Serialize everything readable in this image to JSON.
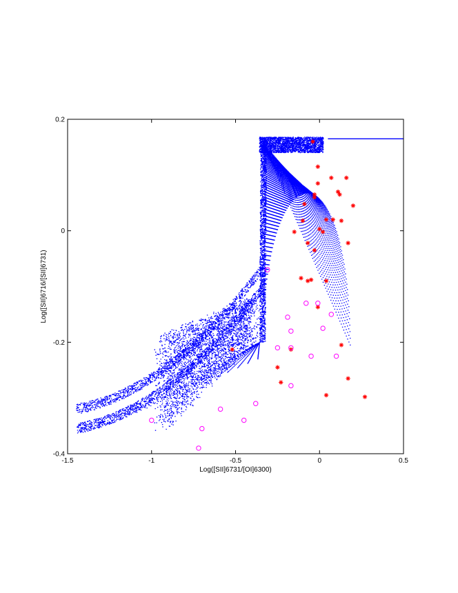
{
  "chart_data": {
    "type": "scatter",
    "title": "",
    "xlabel": "Log([SII]6731/[OI]6300)",
    "ylabel": "Log([SII]6716/[SII]6731)",
    "xlim": [
      -1.5,
      0.5
    ],
    "ylim": [
      -0.4,
      0.2
    ],
    "xticks": [
      "-1.5",
      "-1",
      "-0.5",
      "0",
      "0.5"
    ],
    "yticks": [
      "-0.4",
      "-0.2",
      "0",
      "0.2"
    ],
    "grid": false,
    "colors": {
      "model": "#0000ff",
      "stars": "#ff0000",
      "circles": "#ff00ff"
    },
    "series": [
      {
        "marker": "asterisk",
        "color": "#ff0000",
        "points": [
          [
            -0.04,
            0.16
          ],
          [
            -0.01,
            0.115
          ],
          [
            0.07,
            0.095
          ],
          [
            0.16,
            0.095
          ],
          [
            -0.01,
            0.085
          ],
          [
            -0.03,
            0.065
          ],
          [
            0.11,
            0.07
          ],
          [
            0.12,
            0.065
          ],
          [
            -0.03,
            0.06
          ],
          [
            -0.09,
            0.048
          ],
          [
            0.2,
            0.045
          ],
          [
            0.04,
            0.02
          ],
          [
            0.08,
            0.02
          ],
          [
            -0.1,
            0.018
          ],
          [
            0.13,
            0.018
          ],
          [
            0.0,
            0.003
          ],
          [
            0.02,
            -0.002
          ],
          [
            -0.15,
            -0.002
          ],
          [
            0.17,
            -0.022
          ],
          [
            -0.07,
            -0.022
          ],
          [
            -0.03,
            -0.035
          ],
          [
            -0.11,
            -0.085
          ],
          [
            -0.05,
            -0.088
          ],
          [
            -0.07,
            -0.09
          ],
          [
            0.04,
            -0.09
          ],
          [
            -0.01,
            -0.137
          ],
          [
            0.13,
            -0.205
          ],
          [
            -0.17,
            -0.213
          ],
          [
            -0.52,
            -0.213
          ],
          [
            -0.25,
            -0.245
          ],
          [
            0.17,
            -0.265
          ],
          [
            -0.23,
            -0.272
          ],
          [
            0.04,
            -0.295
          ],
          [
            0.27,
            -0.298
          ]
        ]
      },
      {
        "marker": "circle",
        "color": "#ff00ff",
        "points": [
          [
            -0.31,
            -0.07
          ],
          [
            -0.08,
            -0.13
          ],
          [
            -0.01,
            -0.13
          ],
          [
            -0.19,
            -0.155
          ],
          [
            0.07,
            -0.15
          ],
          [
            0.02,
            -0.175
          ],
          [
            -0.17,
            -0.18
          ],
          [
            -0.25,
            -0.21
          ],
          [
            -0.17,
            -0.21
          ],
          [
            -0.05,
            -0.225
          ],
          [
            0.1,
            -0.225
          ],
          [
            -0.17,
            -0.278
          ],
          [
            -0.59,
            -0.32
          ],
          [
            -0.38,
            -0.31
          ],
          [
            -1.0,
            -0.34
          ],
          [
            -0.45,
            -0.34
          ],
          [
            -0.7,
            -0.355
          ],
          [
            -0.72,
            -0.39
          ]
        ]
      }
    ]
  }
}
